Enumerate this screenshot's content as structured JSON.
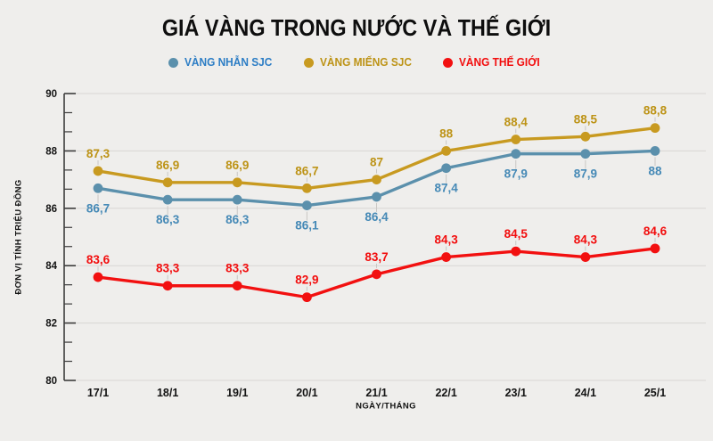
{
  "title": "GIÁ VÀNG TRONG NƯỚC VÀ THẾ GIỚI",
  "colors": {
    "background": "#efeeec",
    "gridline": "#d8d6d3",
    "axis": "#3c3c3c",
    "tick_label": "#141414",
    "leader_line": "#c9c7c4"
  },
  "chart_data": {
    "type": "line",
    "title": "GIÁ VÀNG TRONG NƯỚC VÀ THẾ GIỚI",
    "xlabel": "NGÀY/THÁNG",
    "ylabel": "ĐƠN VỊ TÍNH TRIỆU ĐỒNG",
    "categories": [
      "17/1",
      "18/1",
      "19/1",
      "20/1",
      "21/1",
      "22/1",
      "23/1",
      "24/1",
      "25/1"
    ],
    "ylim": [
      80,
      90
    ],
    "yticks": [
      80,
      82,
      84,
      86,
      88,
      90
    ],
    "y_minor_ticks_per_interval": 2,
    "grid": "horizontal",
    "legend_position": "top",
    "series": [
      {
        "name": "VÀNG NHẪN SJC",
        "color": "#5b90ac",
        "label_color": "#4589b6",
        "legend_text_color": "#2c7dc5",
        "label_position": "below",
        "values": [
          86.7,
          86.3,
          86.3,
          86.1,
          86.4,
          87.4,
          87.9,
          87.9,
          88
        ],
        "labels": [
          "86,7",
          "86,3",
          "86,3",
          "86,1",
          "86,4",
          "87,4",
          "87,9",
          "87,9",
          "88"
        ]
      },
      {
        "name": "VÀNG MIẾNG SJC",
        "color": "#c89a20",
        "label_color": "#bd9316",
        "legend_text_color": "#bd9316",
        "label_position": "above",
        "values": [
          87.3,
          86.9,
          86.9,
          86.7,
          87,
          88,
          88.4,
          88.5,
          88.8
        ],
        "labels": [
          "87,3",
          "86,9",
          "86,9",
          "86,7",
          "87",
          "88",
          "88,4",
          "88,5",
          "88,8"
        ]
      },
      {
        "name": "VÀNG THẾ GIỚI",
        "color": "#f21010",
        "label_color": "#f20d0d",
        "legend_text_color": "#f20d0d",
        "label_position": "above",
        "values": [
          83.6,
          83.3,
          83.3,
          82.9,
          83.7,
          84.3,
          84.5,
          84.3,
          84.6
        ],
        "labels": [
          "83,6",
          "83,3",
          "83,3",
          "82,9",
          "83,7",
          "84,3",
          "84,5",
          "84,3",
          "84,6"
        ]
      }
    ]
  }
}
